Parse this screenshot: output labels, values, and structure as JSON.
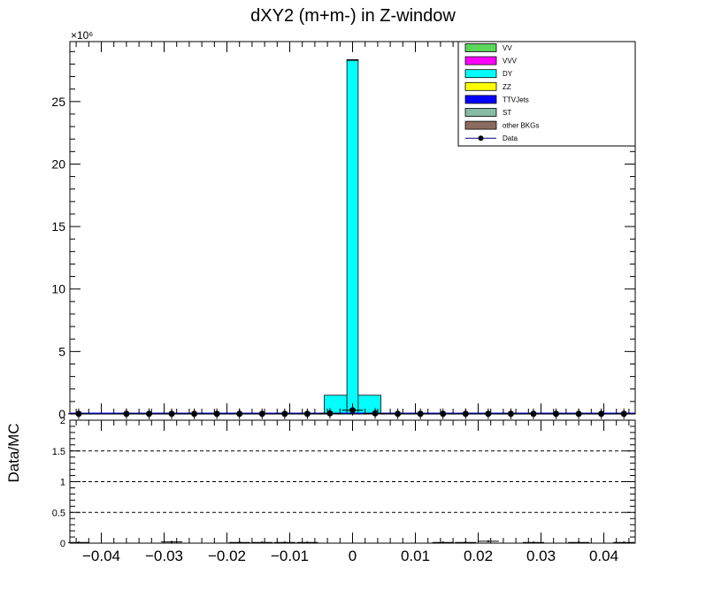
{
  "chart_data": [
    {
      "type": "bar",
      "stacked": true,
      "title": "dXY2 (m+m-) in Z-window",
      "y_multiplier_label": "×10⁶",
      "xlim": [
        -0.045,
        0.045
      ],
      "ylim": [
        0,
        29.8
      ],
      "y_units": "10^6 events",
      "yticks": [
        0,
        5,
        10,
        15,
        20,
        25
      ],
      "bin_edges": [
        -0.0045,
        -0.0009,
        0.0009,
        0.0045
      ],
      "series": [
        {
          "name": "VV",
          "color": "#5ad65a",
          "values": [
            0,
            0,
            0
          ]
        },
        {
          "name": "VVV",
          "color": "#ff00ff",
          "values": [
            0,
            0,
            0
          ]
        },
        {
          "name": "DY",
          "color": "#00ffff",
          "values": [
            1.5,
            28.3,
            1.5
          ]
        },
        {
          "name": "ZZ",
          "color": "#ffff00",
          "values": [
            0,
            0,
            0
          ]
        },
        {
          "name": "TTVJets",
          "color": "#0000ff",
          "values": [
            0,
            0.05,
            0
          ]
        },
        {
          "name": "ST",
          "color": "#86bba5",
          "values": [
            0,
            0,
            0
          ]
        },
        {
          "name": "other BKGs",
          "color": "#8b6a5f",
          "values": [
            0,
            0,
            0
          ]
        }
      ],
      "data_series": {
        "name": "Data",
        "x": [
          -0.0436,
          -0.036,
          -0.0324,
          -0.0288,
          -0.0252,
          -0.0216,
          -0.018,
          -0.0144,
          -0.0108,
          -0.0072,
          -0.0036,
          0.0,
          0.0036,
          0.0072,
          0.0108,
          0.0144,
          0.018,
          0.0216,
          0.0252,
          0.0288,
          0.0324,
          0.036,
          0.0396,
          0.0432
        ],
        "y": [
          0.02,
          0.02,
          0.02,
          0.02,
          0.02,
          0.02,
          0.02,
          0.02,
          0.02,
          0.02,
          0.05,
          0.3,
          0.05,
          0.02,
          0.02,
          0.02,
          0.02,
          0.02,
          0.02,
          0.02,
          0.02,
          0.02,
          0.02,
          0.02
        ]
      },
      "legend": "top-right"
    },
    {
      "type": "scatter",
      "ylabel": "Data/MC",
      "xlim": [
        -0.045,
        0.045
      ],
      "ylim": [
        0,
        2
      ],
      "xticks": [
        -0.04,
        -0.03,
        -0.02,
        -0.01,
        0,
        0.01,
        0.02,
        0.03,
        0.04
      ],
      "xtick_labels": [
        "−0.04",
        "−0.03",
        "−0.02",
        "−0.01",
        "0",
        "0.01",
        "0.02",
        "0.03",
        "0.04"
      ],
      "yticks": [
        0,
        0.5,
        1,
        1.5,
        2
      ],
      "ytick_labels": [
        "0",
        "0.5",
        "1",
        "1.5",
        "2"
      ],
      "reference_lines": [
        0.5,
        1,
        1.5
      ],
      "ratio": {
        "x": [
          -0.0436,
          -0.0288,
          -0.018,
          -0.0144,
          -0.0108,
          -0.0072,
          0.0144,
          0.018,
          0.0216,
          0.0288,
          0.036,
          0.0432
        ],
        "y": [
          0.01,
          0.02,
          0.01,
          0.01,
          0.01,
          0.01,
          0.01,
          0.01,
          0.03,
          0.01,
          0.01,
          0.01
        ]
      }
    }
  ]
}
